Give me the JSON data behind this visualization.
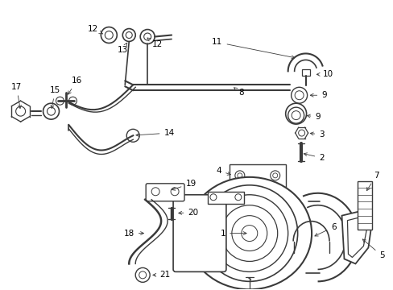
{
  "background_color": "#ffffff",
  "text_color": "#000000",
  "line_color": "#3a3a3a",
  "fig_width": 4.89,
  "fig_height": 3.6,
  "dpi": 100
}
